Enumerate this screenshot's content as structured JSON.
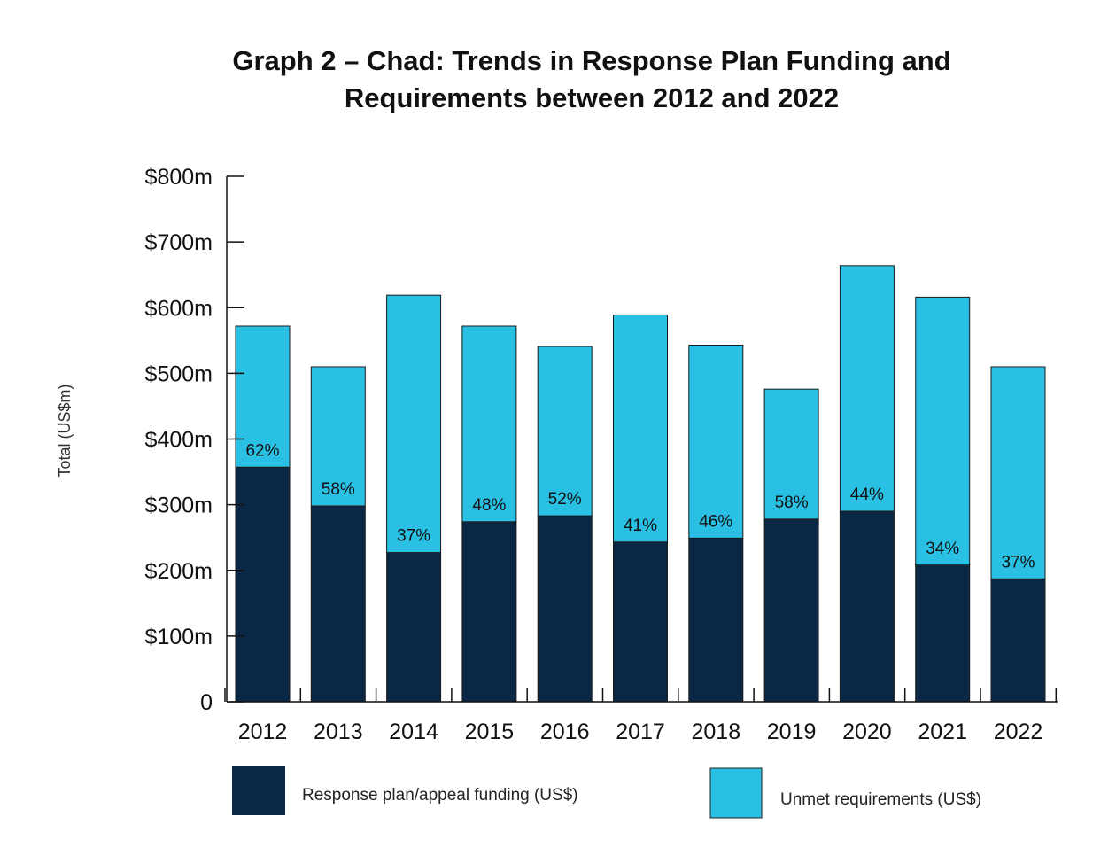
{
  "chart_data": {
    "type": "bar",
    "stacked": true,
    "title": "Graph 2 – Chad: Trends in Response Plan Funding and Requirements between 2012 and 2022",
    "title_lines": [
      "Graph 2 – Chad: Trends in Response Plan Funding and",
      "Requirements between 2012 and 2022"
    ],
    "xlabel": "",
    "ylabel": "Total (US$m)",
    "ylim": [
      0,
      800
    ],
    "y_ticks": [
      0,
      100,
      200,
      300,
      400,
      500,
      600,
      700,
      800
    ],
    "y_tick_labels": [
      "0",
      "$100m",
      "$200m",
      "$300m",
      "$400m",
      "$500m",
      "$600m",
      "$700m",
      "$800m"
    ],
    "categories": [
      "2012",
      "2013",
      "2014",
      "2015",
      "2016",
      "2017",
      "2018",
      "2019",
      "2020",
      "2021",
      "2022"
    ],
    "series": [
      {
        "name": "Response plan/appeal funding (US$)",
        "color": "#0a2846",
        "values": [
          357,
          298,
          227,
          274,
          283,
          243,
          249,
          278,
          290,
          208,
          187
        ]
      },
      {
        "name": "Unmet requirements (US$)",
        "color": "#29c0e4",
        "values": [
          215,
          212,
          392,
          298,
          258,
          346,
          294,
          198,
          374,
          408,
          323
        ]
      }
    ],
    "funded_percent_labels": [
      "62%",
      "58%",
      "37%",
      "48%",
      "52%",
      "41%",
      "46%",
      "58%",
      "44%",
      "34%",
      "37%"
    ],
    "legend_position": "bottom",
    "grid": false
  }
}
